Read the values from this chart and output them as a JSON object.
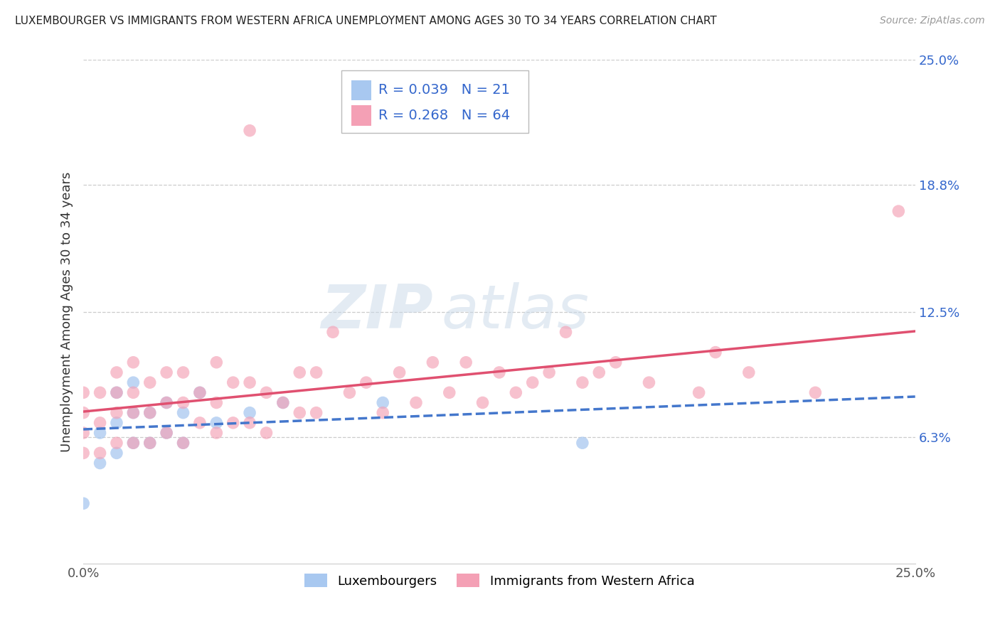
{
  "title": "LUXEMBOURGER VS IMMIGRANTS FROM WESTERN AFRICA UNEMPLOYMENT AMONG AGES 30 TO 34 YEARS CORRELATION CHART",
  "source": "Source: ZipAtlas.com",
  "ylabel": "Unemployment Among Ages 30 to 34 years",
  "xlim": [
    0.0,
    0.25
  ],
  "ylim": [
    0.0,
    0.25
  ],
  "ytick_right_labels": [
    "6.3%",
    "12.5%",
    "18.8%",
    "25.0%"
  ],
  "ytick_right_values": [
    0.063,
    0.125,
    0.188,
    0.25
  ],
  "legend_r1": "R = 0.039",
  "legend_n1": "N = 21",
  "legend_r2": "R = 0.268",
  "legend_n2": "N = 64",
  "color_blue": "#a8c8f0",
  "color_pink": "#f4a0b5",
  "color_blue_line": "#4477cc",
  "color_pink_line": "#e05070",
  "color_blue_text": "#3366cc",
  "background_color": "#ffffff",
  "grid_color": "#cccccc",
  "watermark_zip": "ZIP",
  "watermark_atlas": "atlas",
  "lux_label": "Luxembourgers",
  "imm_label": "Immigrants from Western Africa",
  "lux_x": [
    0.0,
    0.005,
    0.005,
    0.01,
    0.01,
    0.01,
    0.015,
    0.015,
    0.015,
    0.02,
    0.02,
    0.025,
    0.025,
    0.03,
    0.03,
    0.035,
    0.04,
    0.05,
    0.06,
    0.09,
    0.15
  ],
  "lux_y": [
    0.03,
    0.05,
    0.065,
    0.055,
    0.07,
    0.085,
    0.06,
    0.075,
    0.09,
    0.06,
    0.075,
    0.065,
    0.08,
    0.06,
    0.075,
    0.085,
    0.07,
    0.075,
    0.08,
    0.08,
    0.06
  ],
  "imm_x": [
    0.0,
    0.0,
    0.0,
    0.0,
    0.005,
    0.005,
    0.005,
    0.01,
    0.01,
    0.01,
    0.01,
    0.015,
    0.015,
    0.015,
    0.015,
    0.02,
    0.02,
    0.02,
    0.025,
    0.025,
    0.025,
    0.03,
    0.03,
    0.03,
    0.035,
    0.035,
    0.04,
    0.04,
    0.04,
    0.045,
    0.045,
    0.05,
    0.05,
    0.055,
    0.055,
    0.06,
    0.065,
    0.065,
    0.07,
    0.07,
    0.075,
    0.08,
    0.085,
    0.09,
    0.095,
    0.1,
    0.105,
    0.11,
    0.115,
    0.12,
    0.125,
    0.13,
    0.135,
    0.14,
    0.145,
    0.15,
    0.155,
    0.16,
    0.17,
    0.185,
    0.19,
    0.2,
    0.22,
    0.245
  ],
  "imm_y": [
    0.055,
    0.065,
    0.075,
    0.085,
    0.055,
    0.07,
    0.085,
    0.06,
    0.075,
    0.085,
    0.095,
    0.06,
    0.075,
    0.085,
    0.1,
    0.06,
    0.075,
    0.09,
    0.065,
    0.08,
    0.095,
    0.06,
    0.08,
    0.095,
    0.07,
    0.085,
    0.065,
    0.08,
    0.1,
    0.07,
    0.09,
    0.07,
    0.09,
    0.065,
    0.085,
    0.08,
    0.075,
    0.095,
    0.075,
    0.095,
    0.115,
    0.085,
    0.09,
    0.075,
    0.095,
    0.08,
    0.1,
    0.085,
    0.1,
    0.08,
    0.095,
    0.085,
    0.09,
    0.095,
    0.115,
    0.09,
    0.095,
    0.1,
    0.09,
    0.085,
    0.105,
    0.095,
    0.085,
    0.175
  ],
  "imm_outlier_x": [
    0.05
  ],
  "imm_outlier_y": [
    0.215
  ]
}
